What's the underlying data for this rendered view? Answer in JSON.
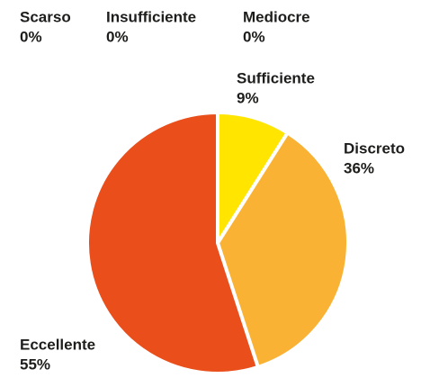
{
  "chart_data": {
    "type": "pie",
    "categories": [
      "Scarso",
      "Insufficiente",
      "Mediocre",
      "Sufficiente",
      "Discreto",
      "Eccellente"
    ],
    "values": [
      0,
      0,
      0,
      9,
      36,
      55
    ],
    "value_labels": [
      "0%",
      "0%",
      "0%",
      "9%",
      "36%",
      "55%"
    ],
    "colors": [
      "#c7c7c7",
      "#d9d9d9",
      "#ececec",
      "#ffe500",
      "#f9b233",
      "#e94e1b"
    ]
  }
}
